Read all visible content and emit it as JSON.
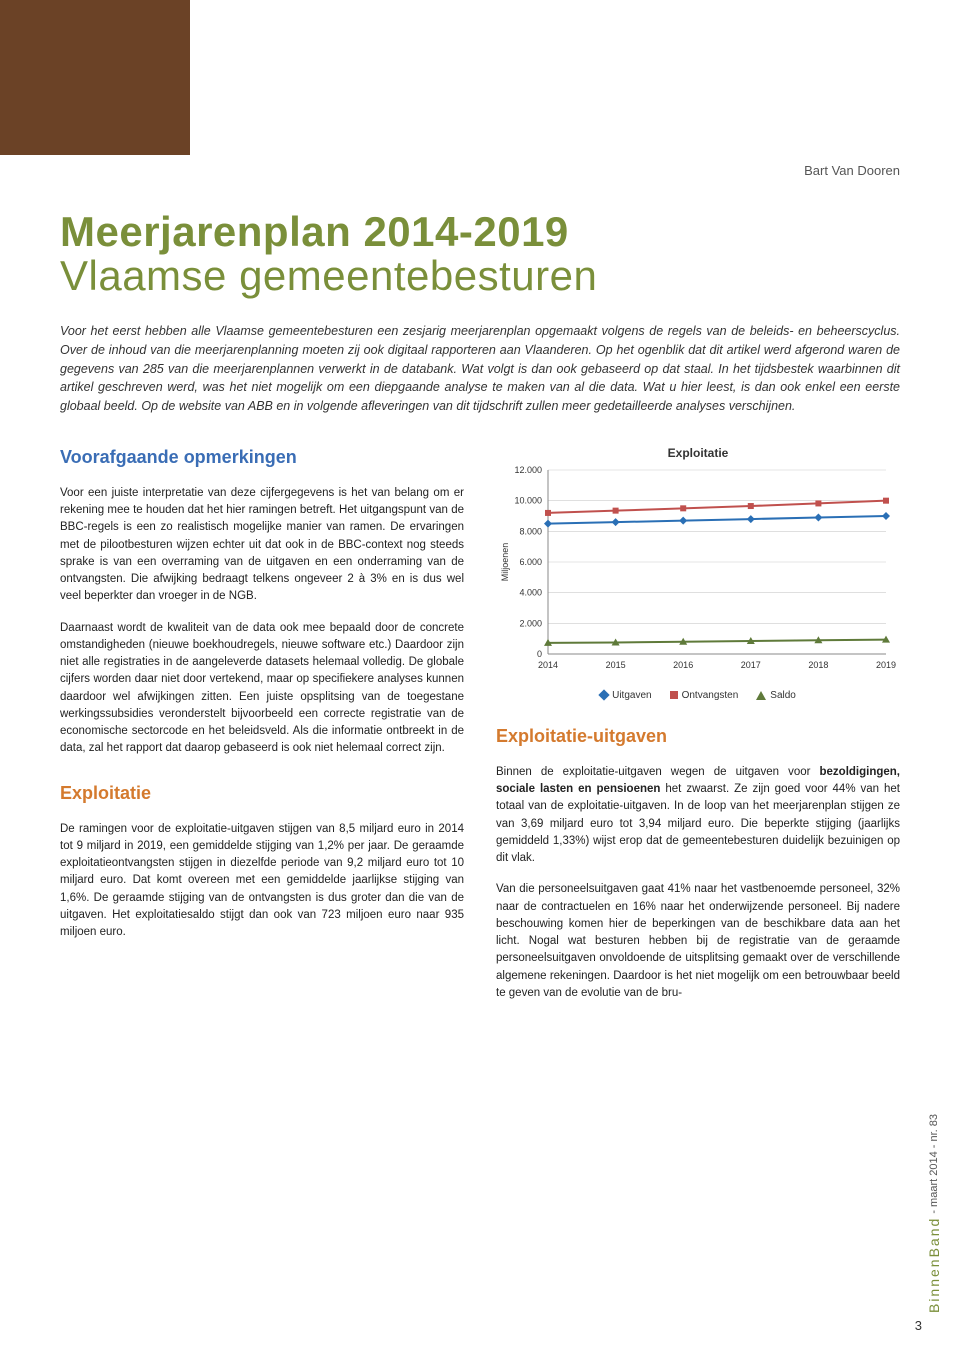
{
  "author": "Bart Van Dooren",
  "title_main": "Meerjarenplan 2014-2019",
  "title_sub": "Vlaamse gemeentebesturen",
  "intro": "Voor het eerst hebben alle Vlaamse gemeentebesturen een zesjarig meerjarenplan opgemaakt volgens de regels van de beleids- en beheerscyclus. Over de inhoud van die meerjarenplanning moeten zij ook digitaal rapporteren aan Vlaanderen. Op het ogenblik dat dit artikel werd afgerond waren de gegevens van 285 van die meerjarenplannen verwerkt in de databank. Wat volgt is dan ook gebaseerd op dat staal. In het tijdsbestek waarbinnen dit artikel geschreven werd, was het niet mogelijk om een diepgaande analyse te maken van al die data. Wat u hier leest, is dan ook enkel een eerste globaal beeld. Op de website van ABB en in volgende afleveringen van dit tijdschrift zullen meer gedetailleerde analyses verschijnen.",
  "left": {
    "h1": "Voorafgaande opmerkingen",
    "p1": "Voor een juiste interpretatie van deze cijfergegevens is het van belang om er rekening mee te houden dat het hier ramingen betreft. Het uitgangspunt van de BBC-regels is een zo realistisch mogelijke manier van ramen. De ervaringen met de pilootbesturen wijzen echter uit dat ook in de BBC-context nog steeds sprake is van een overraming van de uitgaven en een onderraming van de ontvangsten. Die afwijking bedraagt telkens ongeveer 2 à 3% en is dus wel veel beperkter dan vroeger in de NGB.",
    "p2": "Daarnaast wordt de kwaliteit van de data ook mee bepaald door de concrete omstandigheden (nieuwe boekhoudregels, nieuwe software etc.) Daardoor zijn niet alle registraties in de aangeleverde datasets helemaal volledig. De globale cijfers worden daar niet door vertekend, maar op specifiekere analyses kunnen daardoor wel afwijkingen zitten. Een juiste opsplitsing van de toegestane werkingssubsidies veronderstelt bijvoorbeeld een correcte registratie van de economische sectorcode en het beleidsveld. Als die informatie ontbreekt in de data, zal het rapport dat daarop gebaseerd is ook niet helemaal correct zijn.",
    "h2": "Exploitatie",
    "p3": "De ramingen voor de exploitatie-uitgaven stijgen van 8,5 miljard euro in 2014 tot 9 miljard in 2019, een gemiddelde stijging van 1,2% per jaar. De geraamde exploitatieontvangsten stijgen in diezelfde periode van 9,2 miljard euro tot 10 miljard euro. Dat komt overeen met een gemiddelde jaarlijkse stijging van 1,6%. De geraamde stijging van de ontvangsten is dus groter dan die van de uitgaven. Het exploitatiesaldo stijgt dan ook van 723 miljoen euro naar 935 miljoen euro."
  },
  "chart": {
    "title": "Exploitatie",
    "type": "line",
    "categories": [
      "2014",
      "2015",
      "2016",
      "2017",
      "2018",
      "2019"
    ],
    "y_ticks": [
      0,
      2000,
      4000,
      6000,
      8000,
      10000,
      12000
    ],
    "y_labels": [
      "0",
      "2.000",
      "4.000",
      "6.000",
      "8.000",
      "10.000",
      "12.000"
    ],
    "ylim": [
      0,
      12000
    ],
    "y_axis_label": "Miljoenen",
    "series": [
      {
        "name": "Uitgaven",
        "color": "#2a6fb5",
        "marker": "diamond",
        "values": [
          8500,
          8600,
          8700,
          8800,
          8900,
          9000
        ]
      },
      {
        "name": "Ontvangsten",
        "color": "#c0504d",
        "marker": "square",
        "values": [
          9200,
          9350,
          9500,
          9650,
          9820,
          10000
        ]
      },
      {
        "name": "Saldo",
        "color": "#5f7a3a",
        "marker": "triangle",
        "values": [
          723,
          750,
          800,
          850,
          900,
          935
        ]
      }
    ],
    "background_color": "#ffffff",
    "grid_color": "#cccccc",
    "axis_color": "#888888",
    "tick_fontsize": 9,
    "title_fontsize": 12
  },
  "right": {
    "h1": "Exploitatie-uitgaven",
    "p1a": "Binnen de exploitatie-uitgaven wegen de uitgaven voor ",
    "p1b": "bezoldigingen, sociale lasten en pensioenen",
    "p1c": " het zwaarst. Ze zijn goed voor 44% van het totaal van de exploitatie-uitgaven. In de loop van het meerjarenplan stijgen ze van 3,69 miljard euro tot 3,94 miljard euro. Die beperkte stijging (jaarlijks gemiddeld 1,33%) wijst erop dat de gemeentebesturen duidelijk bezuinigen op dit vlak.",
    "p2": "Van die personeelsuitgaven gaat 41% naar het vastbenoemde personeel, 32% naar de contractuelen en 16% naar het onderwijzende personeel. Bij nadere beschouwing komen hier de beperkingen van de beschikbare data aan het licht. Nogal wat besturen hebben bij de registratie van de geraamde personeelsuitgaven onvoldoende de uitsplitsing gemaakt over de verschillende algemene rekeningen. Daardoor is het niet mogelijk om een betrouwbaar beeld te geven van de evolutie van de bru-"
  },
  "footer": {
    "brand": "BinnenBand",
    "issue": " - maart 2014 - nr. 83",
    "page": "3"
  },
  "colors": {
    "brown": "#6b4226",
    "olive": "#7a8f3a",
    "blue_heading": "#3a6db5",
    "orange_heading": "#d47a2e"
  }
}
